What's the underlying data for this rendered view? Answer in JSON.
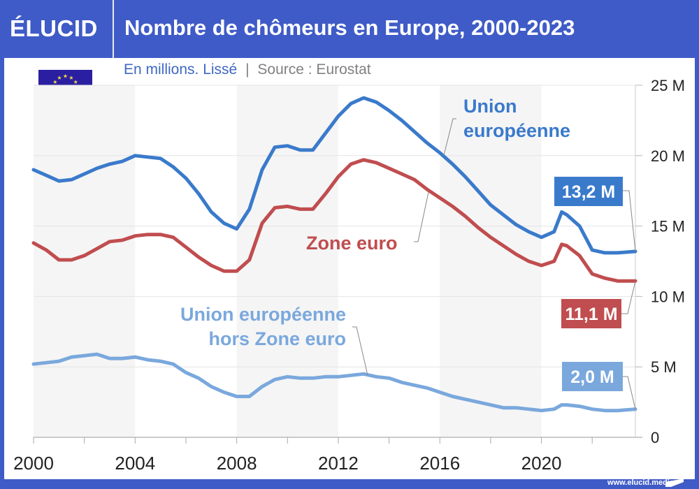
{
  "header": {
    "logo": "ÉLUCID",
    "title": "Nombre de chômeurs en Europe, 2000-2023"
  },
  "subtitle": {
    "unit": "En millions. Lissé",
    "separator": "|",
    "source": "Source : Eurostat"
  },
  "flag": {
    "icon": "eu-flag-icon"
  },
  "footer": {
    "url": "www.elucid.media"
  },
  "colors": {
    "brand": "#3f5bc7",
    "ue": "#3a7acb",
    "ze": "#c04d4f",
    "hors_ze": "#7aa8dd",
    "axis_text": "#222222",
    "band": "#f5f5f5"
  },
  "chart_data": {
    "type": "line",
    "title": "Nombre de chômeurs en Europe, 2000-2023",
    "subtitle": "En millions. Lissé | Source : Eurostat",
    "xlabel": "",
    "ylabel": "",
    "xlim": [
      2000,
      2023.7
    ],
    "ylim": [
      0,
      25
    ],
    "x_ticks": [
      2000,
      2004,
      2008,
      2012,
      2016,
      2020
    ],
    "x_minor_ticks": [
      2002,
      2006,
      2010,
      2014,
      2018,
      2022
    ],
    "y_ticks": [
      0,
      5,
      10,
      15,
      20,
      25
    ],
    "y_tick_labels": [
      "0",
      "5 M",
      "10 M",
      "15 M",
      "20 M",
      "25 M"
    ],
    "grid": true,
    "alternating_bands": [
      [
        2000,
        2004
      ],
      [
        2008,
        2012
      ],
      [
        2016,
        2020
      ]
    ],
    "x": [
      2000,
      2000.5,
      2001,
      2001.5,
      2002,
      2002.5,
      2003,
      2003.5,
      2004,
      2004.5,
      2005,
      2005.5,
      2006,
      2006.5,
      2007,
      2007.5,
      2008,
      2008.5,
      2009,
      2009.5,
      2010,
      2010.5,
      2011,
      2011.5,
      2012,
      2012.5,
      2013,
      2013.5,
      2014,
      2014.5,
      2015,
      2015.5,
      2016,
      2016.5,
      2017,
      2017.5,
      2018,
      2018.5,
      2019,
      2019.5,
      2020,
      2020.5,
      2020.8,
      2021,
      2021.5,
      2022,
      2022.5,
      2023,
      2023.7
    ],
    "series": [
      {
        "name": "Union européenne",
        "label": "Union\neuropéenne",
        "end_label": "13,2 M",
        "color": "#3a7acb",
        "values": [
          19.0,
          18.6,
          18.2,
          18.3,
          18.7,
          19.1,
          19.4,
          19.6,
          20.0,
          19.9,
          19.8,
          19.2,
          18.4,
          17.3,
          16.0,
          15.2,
          14.8,
          16.2,
          19.0,
          20.6,
          20.7,
          20.4,
          20.4,
          21.6,
          22.8,
          23.7,
          24.1,
          23.8,
          23.2,
          22.5,
          21.7,
          20.9,
          20.2,
          19.4,
          18.5,
          17.5,
          16.5,
          15.8,
          15.1,
          14.6,
          14.2,
          14.6,
          16.0,
          15.8,
          15.0,
          13.3,
          13.1,
          13.1,
          13.2
        ]
      },
      {
        "name": "Zone euro",
        "label": "Zone euro",
        "end_label": "11,1 M",
        "color": "#c04d4f",
        "values": [
          13.8,
          13.3,
          12.6,
          12.6,
          12.9,
          13.4,
          13.9,
          14.0,
          14.3,
          14.4,
          14.4,
          14.2,
          13.5,
          12.8,
          12.2,
          11.8,
          11.8,
          12.6,
          15.2,
          16.3,
          16.4,
          16.2,
          16.2,
          17.3,
          18.5,
          19.4,
          19.7,
          19.5,
          19.1,
          18.7,
          18.3,
          17.6,
          17.0,
          16.4,
          15.7,
          14.9,
          14.2,
          13.6,
          13.0,
          12.5,
          12.2,
          12.5,
          13.7,
          13.6,
          12.9,
          11.6,
          11.3,
          11.1,
          11.1
        ]
      },
      {
        "name": "Union européenne hors Zone euro",
        "label": "Union européenne\nhors Zone euro",
        "end_label": "2,0 M",
        "color": "#7aa8dd",
        "values": [
          5.2,
          5.3,
          5.4,
          5.7,
          5.8,
          5.9,
          5.6,
          5.6,
          5.7,
          5.5,
          5.4,
          5.2,
          4.6,
          4.2,
          3.6,
          3.2,
          2.9,
          2.9,
          3.6,
          4.1,
          4.3,
          4.2,
          4.2,
          4.3,
          4.3,
          4.4,
          4.5,
          4.3,
          4.2,
          3.9,
          3.7,
          3.5,
          3.2,
          2.9,
          2.7,
          2.5,
          2.3,
          2.1,
          2.1,
          2.0,
          1.9,
          2.0,
          2.3,
          2.3,
          2.2,
          2.0,
          1.9,
          1.9,
          2.0
        ]
      }
    ],
    "end_labels": [
      "13,2 M",
      "11,1 M",
      "2,0 M"
    ],
    "legend": "inline-annotations"
  }
}
